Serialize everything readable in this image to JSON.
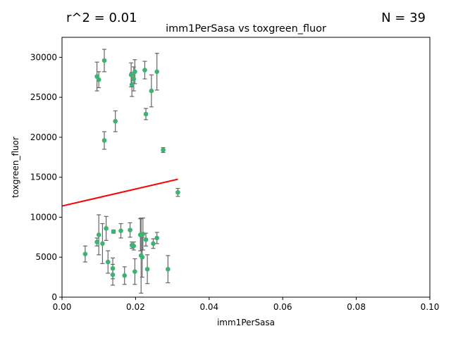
{
  "header": {
    "r2_label": "r^2 = 0.01",
    "n_label": "N = 39"
  },
  "chart_data": {
    "type": "scatter",
    "title": "imm1PerSasa vs toxgreen_fluor",
    "xlabel": "imm1PerSasa",
    "ylabel": "toxgreen_fluor",
    "xlim": [
      0.0,
      0.1
    ],
    "ylim": [
      0,
      32500
    ],
    "xticks": [
      0.0,
      0.02,
      0.04,
      0.06,
      0.08,
      0.1
    ],
    "xtick_labels": [
      "0.00",
      "0.02",
      "0.04",
      "0.06",
      "0.08",
      "0.10"
    ],
    "yticks": [
      0,
      5000,
      10000,
      15000,
      20000,
      25000,
      30000
    ],
    "ytick_labels": [
      "0",
      "5000",
      "10000",
      "15000",
      "20000",
      "25000",
      "30000"
    ],
    "grid": false,
    "point_color": "#3cb371",
    "errorbar_color": "#666666",
    "fit_color": "#ff0000",
    "fit_line": {
      "x": [
        0.0,
        0.0315
      ],
      "y": [
        11400,
        14750
      ]
    },
    "points": [
      {
        "x": 0.0063,
        "y": 5400,
        "err": 1000
      },
      {
        "x": 0.0095,
        "y": 6900,
        "err": 500
      },
      {
        "x": 0.0095,
        "y": 27600,
        "err": 1800
      },
      {
        "x": 0.01,
        "y": 27200,
        "err": 1000
      },
      {
        "x": 0.01,
        "y": 7800,
        "err": 2500
      },
      {
        "x": 0.011,
        "y": 6700,
        "err": 2500
      },
      {
        "x": 0.0115,
        "y": 29600,
        "err": 1400
      },
      {
        "x": 0.0115,
        "y": 19600,
        "err": 1100
      },
      {
        "x": 0.012,
        "y": 8600,
        "err": 1500
      },
      {
        "x": 0.0125,
        "y": 4400,
        "err": 1400
      },
      {
        "x": 0.0138,
        "y": 3600,
        "err": 1300
      },
      {
        "x": 0.0138,
        "y": 2800,
        "err": 1300
      },
      {
        "x": 0.014,
        "y": 8200,
        "err": 200
      },
      {
        "x": 0.0145,
        "y": 22000,
        "err": 1300
      },
      {
        "x": 0.016,
        "y": 8300,
        "err": 900
      },
      {
        "x": 0.017,
        "y": 2700,
        "err": 1100
      },
      {
        "x": 0.0185,
        "y": 8400,
        "err": 900
      },
      {
        "x": 0.0188,
        "y": 27800,
        "err": 1500
      },
      {
        "x": 0.019,
        "y": 26600,
        "err": 1500
      },
      {
        "x": 0.0195,
        "y": 6400,
        "err": 500
      },
      {
        "x": 0.0195,
        "y": 27300,
        "err": 1500
      },
      {
        "x": 0.0198,
        "y": 28200,
        "err": 1500
      },
      {
        "x": 0.0198,
        "y": 3200,
        "err": 1600
      },
      {
        "x": 0.0213,
        "y": 7800,
        "err": 2000
      },
      {
        "x": 0.0215,
        "y": 5200,
        "err": 4700
      },
      {
        "x": 0.0218,
        "y": 5000,
        "err": 2500
      },
      {
        "x": 0.022,
        "y": 7900,
        "err": 2000
      },
      {
        "x": 0.0225,
        "y": 28400,
        "err": 1100
      },
      {
        "x": 0.0228,
        "y": 22900,
        "err": 700
      },
      {
        "x": 0.0228,
        "y": 7200,
        "err": 800
      },
      {
        "x": 0.0232,
        "y": 3500,
        "err": 1800
      },
      {
        "x": 0.0243,
        "y": 25800,
        "err": 2000
      },
      {
        "x": 0.0248,
        "y": 6700,
        "err": 600
      },
      {
        "x": 0.0258,
        "y": 28200,
        "err": 2300
      },
      {
        "x": 0.0258,
        "y": 7400,
        "err": 700
      },
      {
        "x": 0.0275,
        "y": 18400,
        "err": 300
      },
      {
        "x": 0.0288,
        "y": 3500,
        "err": 1700
      },
      {
        "x": 0.0315,
        "y": 13100,
        "err": 500
      },
      {
        "x": 0.019,
        "y": 6500,
        "err": 400
      }
    ]
  }
}
